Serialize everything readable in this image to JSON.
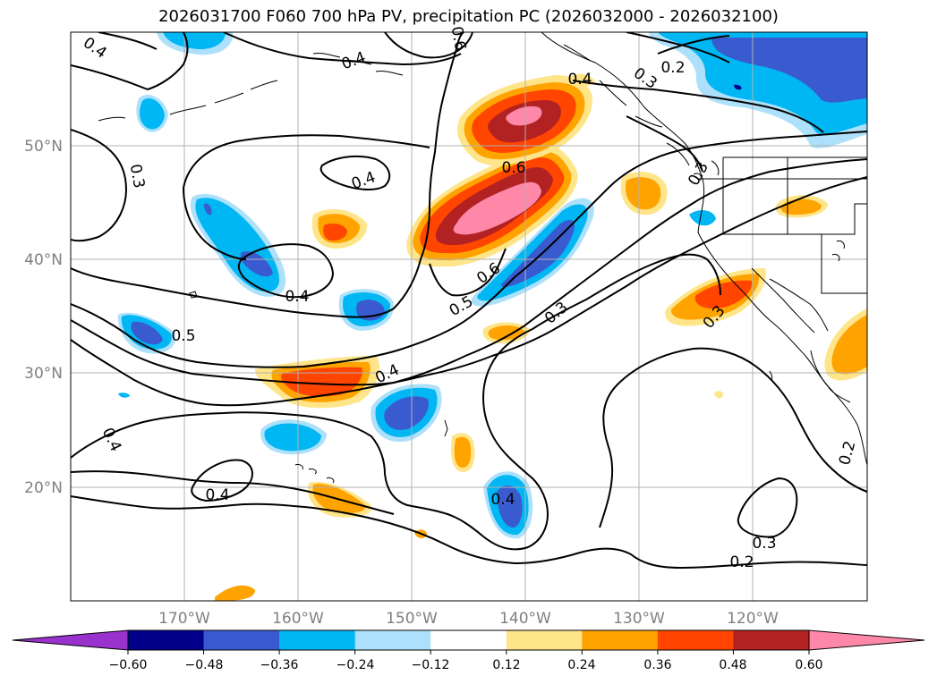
{
  "title": "2026031700 F060 700 hPa PV, precipitation PC (2026032000 - 2026032100)",
  "lat_labels": [
    "50°N",
    "40°N",
    "30°N",
    "20°N"
  ],
  "lon_labels": [
    "170°W",
    "160°W",
    "150°W",
    "140°W",
    "130°W",
    "120°W"
  ],
  "contour_labels": [
    "0.4",
    "0.3",
    "0.4",
    "0.6",
    "0.4",
    "0.3",
    "0.2",
    "0.6",
    "0.3",
    "0.4",
    "0.6",
    "0.5",
    "0.4",
    "0.5",
    "0.3",
    "0.3",
    "0.4",
    "0.4",
    "0.4",
    "0.3",
    "0.2",
    "0.2",
    "0.4"
  ],
  "colorbar": {
    "ticks": [
      "−0.60",
      "−0.48",
      "−0.36",
      "−0.24",
      "−0.12",
      "0.12",
      "0.24",
      "0.36",
      "0.48",
      "0.60"
    ],
    "colors": [
      "#9932cc",
      "#00008b",
      "#3a5bcf",
      "#00b7f4",
      "#ade0fa",
      "#ffffff",
      "#ffe58a",
      "#ffa300",
      "#ff4500",
      "#b22222",
      "#ff88a8"
    ]
  }
}
